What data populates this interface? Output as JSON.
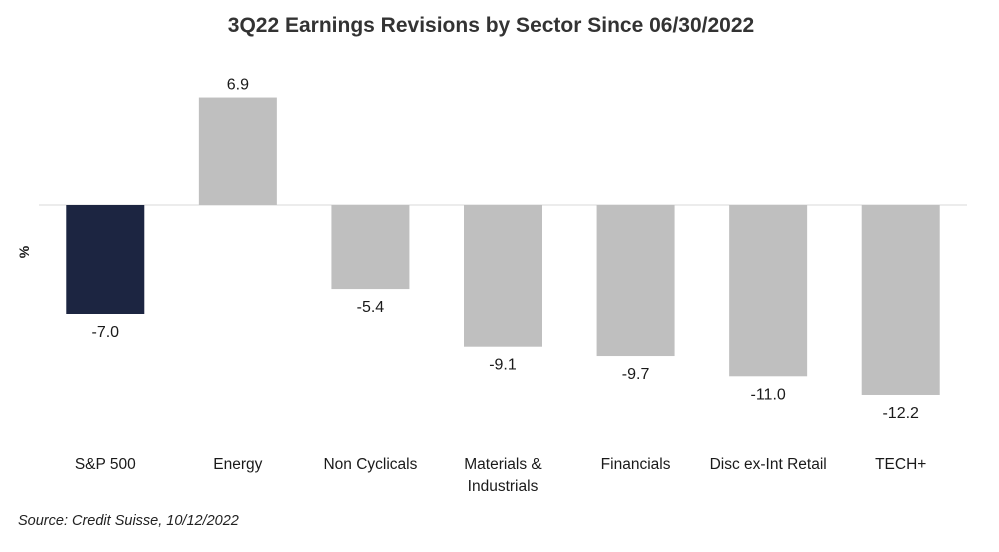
{
  "chart_data": {
    "type": "bar",
    "title": "3Q22 Earnings Revisions by Sector Since 06/30/2022",
    "ylabel": "%",
    "xlabel": "",
    "categories": [
      "S&P 500",
      "Energy",
      "Non Cyclicals",
      "Materials & Industrials",
      "Financials",
      "Disc ex-Int Retail",
      "TECH+"
    ],
    "category_lines": [
      [
        "S&P 500"
      ],
      [
        "Energy"
      ],
      [
        "Non Cyclicals"
      ],
      [
        "Materials &",
        "Industrials"
      ],
      [
        "Financials"
      ],
      [
        "Disc ex-Int Retail"
      ],
      [
        "TECH+"
      ]
    ],
    "values": [
      -7.0,
      6.9,
      -5.4,
      -9.1,
      -9.7,
      -11.0,
      -12.2
    ],
    "data_labels": [
      "-7.0",
      "6.9",
      "-5.4",
      "-9.1",
      "-9.7",
      "-11.0",
      "-12.2"
    ],
    "ylim": [
      -12.2,
      6.9
    ],
    "grid": false,
    "legend": "none",
    "colors": {
      "highlight": "#1c2541",
      "default": "#bfbfbf",
      "zero_line": "#d9d9d9"
    },
    "highlight_index": 0
  },
  "source": "Source: Credit Suisse, 10/12/2022"
}
